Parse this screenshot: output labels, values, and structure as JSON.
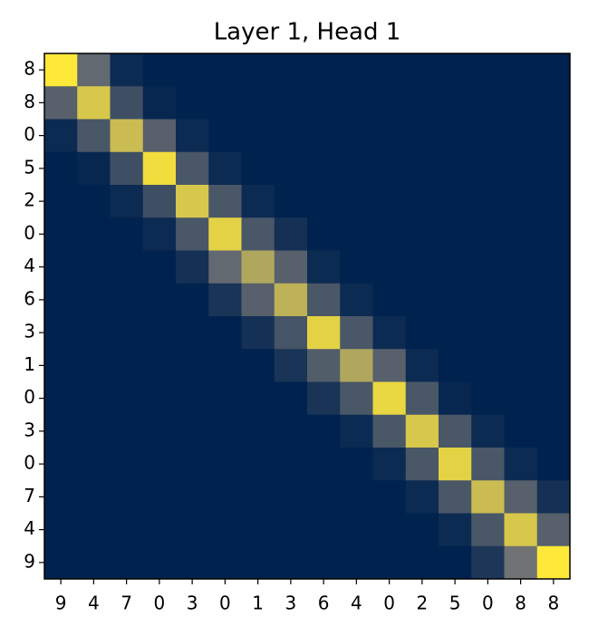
{
  "chart_data": {
    "type": "heatmap",
    "title": "Layer 1, Head 1",
    "x_categories": [
      "9",
      "4",
      "7",
      "0",
      "3",
      "0",
      "1",
      "3",
      "6",
      "4",
      "0",
      "2",
      "5",
      "0",
      "8",
      "8"
    ],
    "y_categories": [
      "8",
      "8",
      "0",
      "5",
      "2",
      "0",
      "4",
      "6",
      "3",
      "1",
      "0",
      "3",
      "0",
      "7",
      "4",
      "9"
    ],
    "colormap": [
      "#00224e",
      "#7c7b78",
      "#fee838"
    ],
    "clim": [
      0,
      1
    ],
    "values": [
      [
        1.0,
        0.4,
        0.05,
        0,
        0,
        0,
        0,
        0,
        0,
        0,
        0,
        0,
        0,
        0,
        0,
        0
      ],
      [
        0.35,
        0.85,
        0.25,
        0.03,
        0,
        0,
        0,
        0,
        0,
        0,
        0,
        0,
        0,
        0,
        0,
        0
      ],
      [
        0.05,
        0.3,
        0.8,
        0.35,
        0.05,
        0,
        0,
        0,
        0,
        0,
        0,
        0,
        0,
        0,
        0,
        0
      ],
      [
        0,
        0.03,
        0.25,
        0.95,
        0.3,
        0.05,
        0,
        0,
        0,
        0,
        0,
        0,
        0,
        0,
        0,
        0
      ],
      [
        0,
        0,
        0.05,
        0.25,
        0.85,
        0.3,
        0.05,
        0,
        0,
        0,
        0,
        0,
        0,
        0,
        0,
        0
      ],
      [
        0,
        0,
        0,
        0.05,
        0.3,
        0.9,
        0.3,
        0.08,
        0,
        0,
        0,
        0,
        0,
        0,
        0,
        0
      ],
      [
        0,
        0,
        0,
        0,
        0.08,
        0.4,
        0.7,
        0.35,
        0.05,
        0,
        0,
        0,
        0,
        0,
        0,
        0
      ],
      [
        0,
        0,
        0,
        0,
        0,
        0.1,
        0.35,
        0.75,
        0.3,
        0.05,
        0,
        0,
        0,
        0,
        0,
        0
      ],
      [
        0,
        0,
        0,
        0,
        0,
        0,
        0.08,
        0.28,
        0.9,
        0.3,
        0.05,
        0,
        0,
        0,
        0,
        0
      ],
      [
        0,
        0,
        0,
        0,
        0,
        0,
        0,
        0.1,
        0.33,
        0.7,
        0.35,
        0.05,
        0,
        0,
        0,
        0
      ],
      [
        0,
        0,
        0,
        0,
        0,
        0,
        0,
        0,
        0.1,
        0.3,
        0.92,
        0.3,
        0.03,
        0,
        0,
        0
      ],
      [
        0,
        0,
        0,
        0,
        0,
        0,
        0,
        0,
        0,
        0.05,
        0.3,
        0.85,
        0.3,
        0.05,
        0,
        0
      ],
      [
        0,
        0,
        0,
        0,
        0,
        0,
        0,
        0,
        0,
        0,
        0.05,
        0.3,
        0.9,
        0.3,
        0.05,
        0
      ],
      [
        0,
        0,
        0,
        0,
        0,
        0,
        0,
        0,
        0,
        0,
        0,
        0.05,
        0.3,
        0.8,
        0.35,
        0.08
      ],
      [
        0,
        0,
        0,
        0,
        0,
        0,
        0,
        0,
        0,
        0,
        0,
        0,
        0.05,
        0.3,
        0.85,
        0.35
      ],
      [
        0,
        0,
        0,
        0,
        0,
        0,
        0,
        0,
        0,
        0,
        0,
        0,
        0,
        0.12,
        0.45,
        1.0
      ]
    ]
  }
}
